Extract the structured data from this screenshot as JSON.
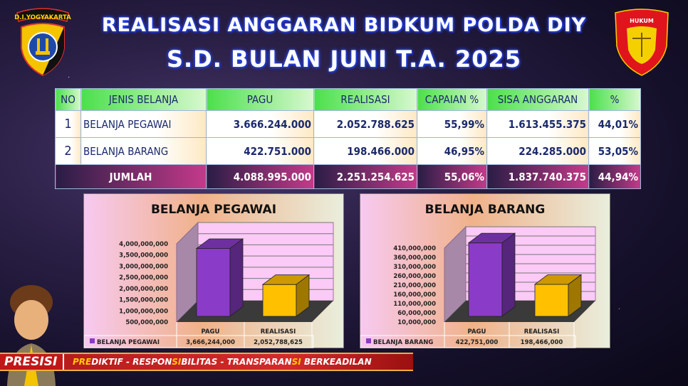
{
  "header": {
    "line1": "REALISASI ANGGARAN BIDKUM POLDA DIY",
    "line2": "S.D. BULAN JUNI T.A. 2025"
  },
  "logos": {
    "left": "D.I.YOGYAKARTA",
    "right": "HUKUM"
  },
  "table": {
    "columns": [
      "NO",
      "JENIS BELANJA",
      "PAGU",
      "REALISASI",
      "CAPAIAN %",
      "SISA ANGGARAN",
      "%"
    ],
    "rows": [
      {
        "no": "1",
        "jenis": "BELANJA PEGAWAI",
        "pagu": "3.666.244.000",
        "realisasi": "2.052.788.625",
        "capaian": "55,99%",
        "sisa": "1.613.455.375",
        "pct": "44,01%"
      },
      {
        "no": "2",
        "jenis": "BELANJA BARANG",
        "pagu": "422.751.000",
        "realisasi": "198.466.000",
        "capaian": "46,95%",
        "sisa": "224.285.000",
        "pct": "53,05%"
      }
    ],
    "total": {
      "label": "JUMLAH",
      "pagu": "4.088.995.000",
      "realisasi": "2.251.254.625",
      "capaian": "55,06%",
      "sisa": "1.837.740.375",
      "pct": "44,94%"
    }
  },
  "chart_data": [
    {
      "type": "bar",
      "title": "BELANJA PEGAWAI",
      "categories": [
        "PAGU",
        "REALISASI"
      ],
      "series": [
        {
          "name": "BELANJA PEGAWAI",
          "values": [
            3666244000,
            2052788625
          ],
          "value_labels": [
            "3,666,244,000",
            "2,052,788,625"
          ]
        }
      ],
      "yticks": [
        "500,000,000",
        "1,000,000,000",
        "1,500,000,000",
        "2,000,000,000",
        "2,500,000,000",
        "3,000,000,000",
        "3,500,000,000",
        "4,000,000,000"
      ],
      "ylim": [
        500000000,
        4000000000
      ],
      "colors": [
        "#8a3cc8",
        "#ffc000"
      ],
      "grid": true,
      "legend": "data-table"
    },
    {
      "type": "bar",
      "title": "BELANJA BARANG",
      "categories": [
        "PAGU",
        "REALISASI"
      ],
      "series": [
        {
          "name": "BELANJA BARANG",
          "values": [
            422751000,
            198466000
          ],
          "value_labels": [
            "422,751,000",
            "198,466,000"
          ]
        }
      ],
      "yticks": [
        "10,000,000",
        "60,000,000",
        "110,000,000",
        "160,000,000",
        "210,000,000",
        "260,000,000",
        "310,000,000",
        "360,000,000",
        "410,000,000"
      ],
      "ylim": [
        10000000,
        410000000
      ],
      "colors": [
        "#8a3cc8",
        "#ffc000"
      ],
      "grid": true,
      "legend": "data-table"
    }
  ],
  "banner": {
    "brand": "PRESISI",
    "motto": [
      {
        "t": "PRE",
        "hl": true
      },
      {
        "t": "DIKTIF - RESPON",
        "hl": false
      },
      {
        "t": "SI",
        "hl": true
      },
      {
        "t": "BILITAS - TRANSPARAN",
        "hl": false
      },
      {
        "t": "SI",
        "hl": true
      },
      {
        "t": " BERKEADILAN",
        "hl": false
      }
    ]
  }
}
